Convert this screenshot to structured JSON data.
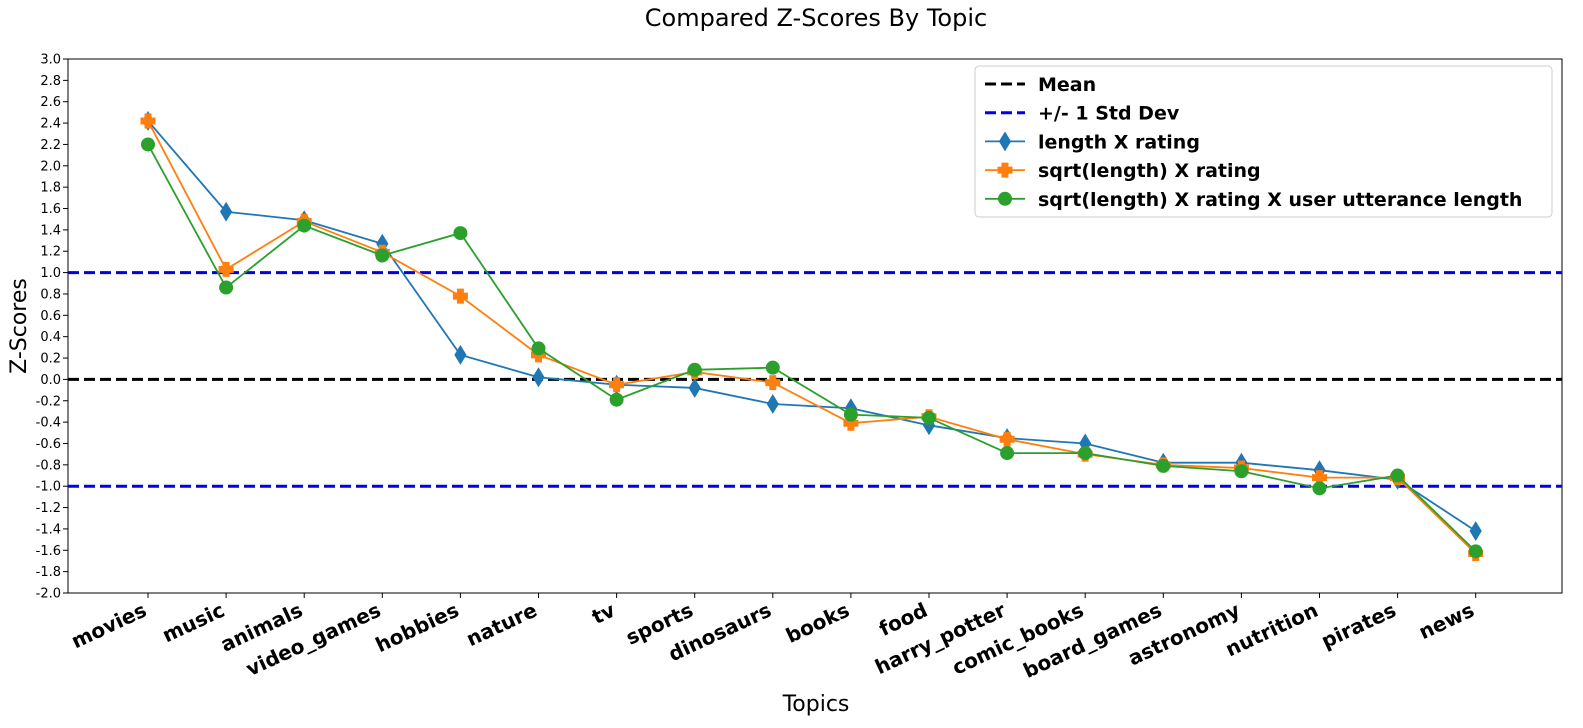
{
  "chart_data": {
    "type": "line",
    "title": "Compared Z-Scores By Topic",
    "xlabel": "Topics",
    "ylabel": "Z-Scores",
    "ylim": [
      -2.0,
      3.0
    ],
    "yticks": [
      "-2.0",
      "-1.8",
      "-1.6",
      "-1.4",
      "-1.2",
      "-1.0",
      "-0.8",
      "-0.6",
      "-0.4",
      "-0.2",
      "0.0",
      "0.2",
      "0.4",
      "0.6",
      "0.8",
      "1.0",
      "1.2",
      "1.4",
      "1.6",
      "1.8",
      "2.0",
      "2.2",
      "2.4",
      "2.6",
      "2.8",
      "3.0"
    ],
    "categories": [
      "movies",
      "music",
      "animals",
      "video_games",
      "hobbies",
      "nature",
      "tv",
      "sports",
      "dinosaurs",
      "books",
      "food",
      "harry_potter",
      "comic_books",
      "board_games",
      "astronomy",
      "nutrition",
      "pirates",
      "news"
    ],
    "reference_lines": [
      {
        "name": "Mean",
        "value": 0.0,
        "color": "#000000",
        "style": "dashed"
      },
      {
        "name": "+/- 1 Std Dev",
        "value": 1.0,
        "color": "#0000ee",
        "style": "dashed"
      },
      {
        "name": "",
        "value": -1.0,
        "color": "#0000ee",
        "style": "dashed"
      }
    ],
    "series": [
      {
        "name": "length X rating",
        "color": "#1f77b4",
        "marker": "diamond",
        "values": [
          2.42,
          1.57,
          1.49,
          1.27,
          0.23,
          0.02,
          -0.05,
          -0.08,
          -0.23,
          -0.27,
          -0.43,
          -0.55,
          -0.6,
          -0.78,
          -0.78,
          -0.85,
          -0.94,
          -1.42
        ]
      },
      {
        "name": "sqrt(length) X rating",
        "color": "#ff7f0e",
        "marker": "plus",
        "values": [
          2.42,
          1.03,
          1.48,
          1.19,
          0.78,
          0.23,
          -0.05,
          0.07,
          -0.03,
          -0.41,
          -0.35,
          -0.56,
          -0.7,
          -0.8,
          -0.83,
          -0.92,
          -0.92,
          -1.63
        ]
      },
      {
        "name": "sqrt(length) X rating X user utterance length",
        "color": "#2ca02c",
        "marker": "circle",
        "values": [
          2.2,
          0.86,
          1.44,
          1.16,
          1.37,
          0.29,
          -0.19,
          0.09,
          0.11,
          -0.33,
          -0.36,
          -0.69,
          -0.69,
          -0.81,
          -0.86,
          -1.02,
          -0.9,
          -1.61
        ]
      }
    ],
    "legend_position": "top-right",
    "grid": false
  }
}
